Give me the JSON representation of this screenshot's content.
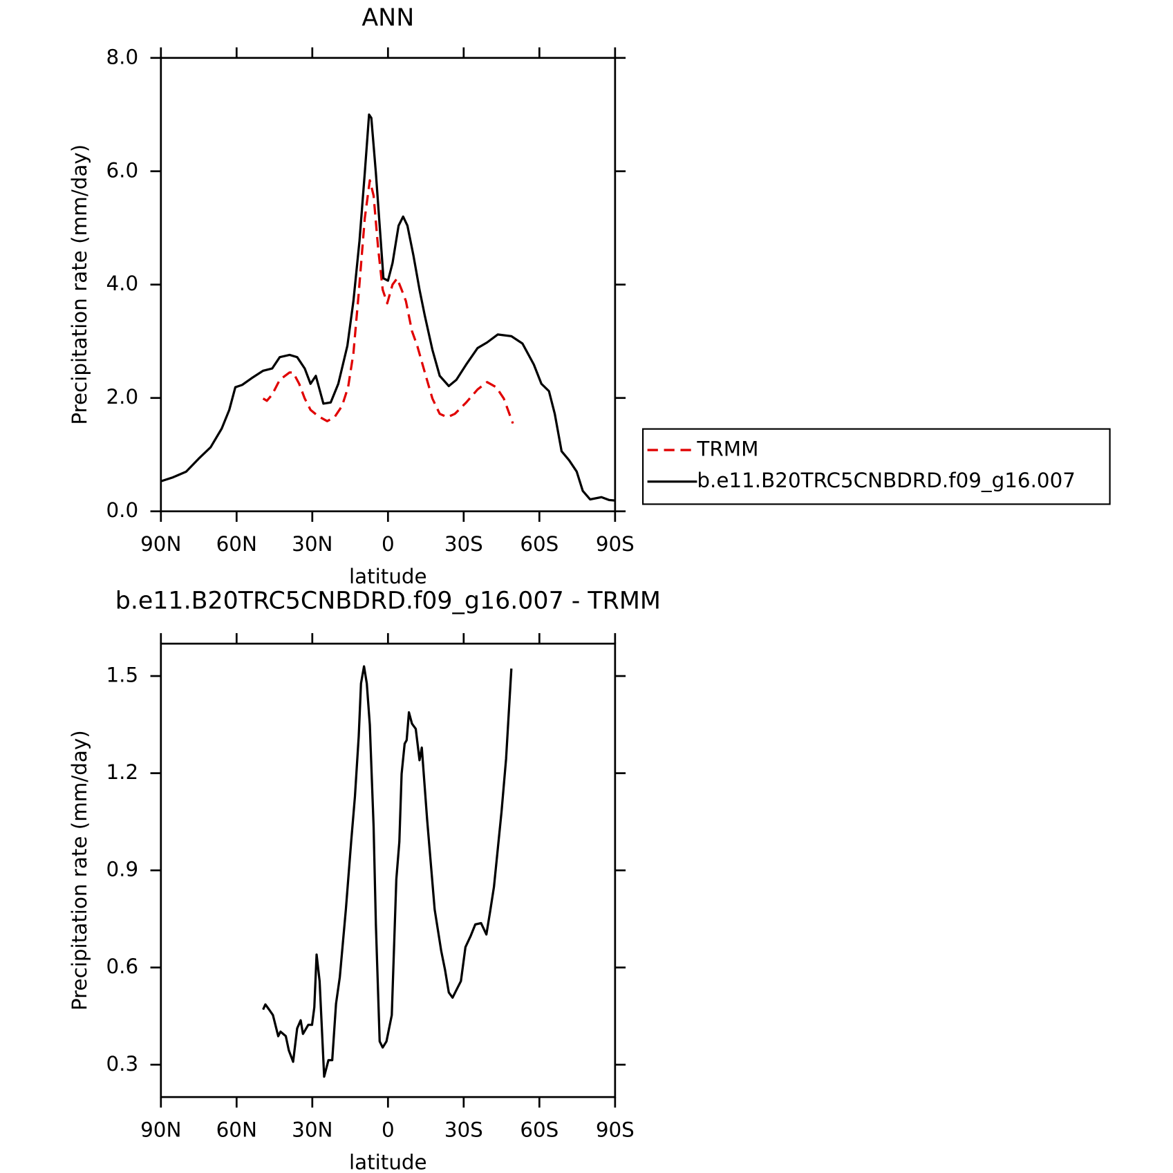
{
  "chart_data": [
    {
      "type": "line",
      "title": "ANN",
      "xlabel": "latitude",
      "ylabel": "Precipitation rate (mm/day)",
      "xlim": [
        90,
        -90
      ],
      "xticks": [
        {
          "value": 90,
          "label": "90N"
        },
        {
          "value": 60,
          "label": "60N"
        },
        {
          "value": 30,
          "label": "30N"
        },
        0,
        {
          "value": -30,
          "label": "30S"
        },
        {
          "value": -60,
          "label": "60S"
        },
        {
          "value": -90,
          "label": "90S"
        }
      ],
      "ylim": [
        0,
        8
      ],
      "yticks": [
        {
          "value": 0,
          "label": "0.0"
        },
        {
          "value": 2,
          "label": "2.0"
        },
        {
          "value": 4,
          "label": "4.0"
        },
        {
          "value": 6,
          "label": "6.0"
        },
        {
          "value": 8,
          "label": "8.0"
        }
      ],
      "legend": "right",
      "series": [
        {
          "name": "TRMM",
          "color": "#e00000",
          "dash": true,
          "x": [
            49.5,
            48,
            45.9,
            42.9,
            39,
            37.6,
            35.2,
            33,
            30.7,
            27.7,
            24.1,
            21.2,
            18.2,
            15.8,
            13.7,
            11.6,
            9.2,
            7.2,
            5.7,
            3.9,
            2.1,
            0.3,
            -1.8,
            -3.6,
            -5.4,
            -7.1,
            -9.5,
            -11.6,
            -14.6,
            -17.6,
            -20.5,
            -23.5,
            -26.5,
            -31,
            -35.5,
            -39.3,
            -42.9,
            -45.9,
            -49.5
          ],
          "values": [
            1.99,
            1.95,
            2.06,
            2.32,
            2.45,
            2.45,
            2.25,
            1.99,
            1.79,
            1.68,
            1.59,
            1.66,
            1.86,
            2.19,
            2.79,
            3.85,
            5.17,
            5.84,
            5.57,
            4.64,
            3.91,
            3.67,
            4.0,
            4.11,
            3.91,
            3.71,
            3.18,
            2.92,
            2.45,
            1.99,
            1.72,
            1.66,
            1.72,
            1.92,
            2.15,
            2.28,
            2.19,
            1.99,
            1.55
          ]
        },
        {
          "name": "b.e11.B20TRC5CNBDRD.f09_g16.007",
          "color": "#000000",
          "dash": false,
          "x": [
            90,
            85.2,
            80,
            75,
            70.3,
            65.9,
            62.9,
            60.5,
            57.8,
            54,
            49.5,
            45.9,
            42.9,
            39,
            36,
            33,
            30.7,
            28.6,
            25.6,
            22.7,
            19.7,
            16.1,
            13.7,
            11.3,
            9.2,
            7.5,
            6.6,
            4.8,
            3.3,
            1.8,
            0,
            -1.8,
            -4.2,
            -6,
            -7.7,
            -10.1,
            -12.5,
            -14.6,
            -17.6,
            -20.5,
            -24.1,
            -27.1,
            -31,
            -35.5,
            -39.3,
            -43.5,
            -48.9,
            -53.3,
            -57.8,
            -60.8,
            -63.8,
            -66.1,
            -68.8,
            -71.8,
            -74.8,
            -77.2,
            -80.1,
            -84.6,
            -87.6,
            -90
          ],
          "values": [
            0.53,
            0.6,
            0.7,
            0.93,
            1.13,
            1.46,
            1.79,
            2.19,
            2.23,
            2.35,
            2.48,
            2.52,
            2.72,
            2.76,
            2.72,
            2.52,
            2.25,
            2.39,
            1.9,
            1.92,
            2.25,
            2.92,
            3.71,
            4.77,
            5.97,
            7.0,
            6.94,
            5.97,
            5.04,
            4.11,
            4.07,
            4.38,
            5.04,
            5.2,
            5.04,
            4.51,
            3.91,
            3.45,
            2.85,
            2.39,
            2.21,
            2.32,
            2.59,
            2.88,
            2.98,
            3.12,
            3.09,
            2.96,
            2.59,
            2.25,
            2.12,
            1.72,
            1.06,
            0.9,
            0.7,
            0.36,
            0.21,
            0.25,
            0.2,
            0.19
          ]
        }
      ]
    },
    {
      "type": "line",
      "title": "b.e11.B20TRC5CNBDRD.f09_g16.007 - TRMM",
      "xlabel": "latitude",
      "ylabel": "Precipitation rate (mm/day)",
      "xlim": [
        90,
        -90
      ],
      "xticks": [
        {
          "value": 90,
          "label": "90N"
        },
        {
          "value": 60,
          "label": "60N"
        },
        {
          "value": 30,
          "label": "30N"
        },
        0,
        {
          "value": -30,
          "label": "30S"
        },
        {
          "value": -60,
          "label": "60S"
        },
        {
          "value": -90,
          "label": "90S"
        }
      ],
      "ylim": [
        0.2,
        1.6
      ],
      "yticks": [
        0.3,
        0.6,
        0.9,
        1.2,
        1.5
      ],
      "color": "#000000",
      "x": [
        49.5,
        48.6,
        47.1,
        45.6,
        43.5,
        42.6,
        40.5,
        39.3,
        37.6,
        36,
        34.6,
        33.7,
        31.6,
        30.1,
        29.2,
        28.3,
        27.1,
        25.3,
        23.6,
        22.1,
        20.6,
        19.1,
        16.7,
        14.6,
        13.1,
        11.6,
        10.7,
        9.5,
        8.4,
        7.2,
        5.7,
        4.8,
        3.3,
        2.1,
        0.6,
        -1.5,
        -3.3,
        -4.5,
        -5.4,
        -6.6,
        -7.4,
        -8.3,
        -9.5,
        -11,
        -12.5,
        -13.4,
        -15.5,
        -18.5,
        -21.1,
        -22.6,
        -24.1,
        -25.6,
        -27.4,
        -28.9,
        -30.7,
        -32.8,
        -34.6,
        -36.9,
        -39,
        -40.5,
        -42,
        -43.5,
        -45,
        -46.8,
        -48.9
      ],
      "values": [
        0.47,
        0.486,
        0.47,
        0.453,
        0.388,
        0.402,
        0.388,
        0.344,
        0.309,
        0.412,
        0.437,
        0.395,
        0.423,
        0.423,
        0.477,
        0.64,
        0.558,
        0.263,
        0.314,
        0.314,
        0.488,
        0.57,
        0.779,
        0.988,
        1.128,
        1.314,
        1.477,
        1.53,
        1.477,
        1.349,
        1.035,
        0.733,
        0.372,
        0.353,
        0.372,
        0.453,
        0.872,
        0.988,
        1.198,
        1.291,
        1.302,
        1.388,
        1.353,
        1.337,
        1.24,
        1.279,
        1.058,
        0.779,
        0.651,
        0.593,
        0.523,
        0.507,
        0.535,
        0.558,
        0.663,
        0.698,
        0.733,
        0.737,
        0.702,
        0.774,
        0.849,
        0.965,
        1.081,
        1.244,
        1.523
      ]
    }
  ]
}
